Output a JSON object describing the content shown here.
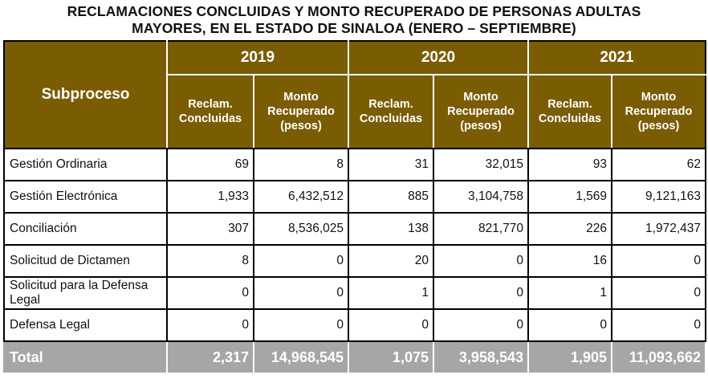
{
  "title": {
    "line1": "RECLAMACIONES CONCLUIDAS Y MONTO RECUPERADO DE PERSONAS ADULTAS",
    "line2": "MAYORES, EN EL ESTADO DE SINALOA (ENERO – SEPTIEMBRE)"
  },
  "header": {
    "subproceso": "Subproceso",
    "years": [
      "2019",
      "2020",
      "2021"
    ],
    "col_reclam": "Reclam. Concluidas",
    "col_monto": "Monto Recuperado (pesos)"
  },
  "rows": [
    {
      "label": "Gestión Ordinaria",
      "values": [
        "69",
        "8",
        "31",
        "32,015",
        "93",
        "62"
      ]
    },
    {
      "label": "Gestión Electrónica",
      "values": [
        "1,933",
        "6,432,512",
        "885",
        "3,104,758",
        "1,569",
        "9,121,163"
      ]
    },
    {
      "label": "Conciliación",
      "values": [
        "307",
        "8,536,025",
        "138",
        "821,770",
        "226",
        "1,972,437"
      ]
    },
    {
      "label": "Solicitud de Dictamen",
      "values": [
        "8",
        "0",
        "20",
        "0",
        "16",
        "0"
      ]
    },
    {
      "label": "Solicitud para la Defensa Legal",
      "values": [
        "0",
        "0",
        "1",
        "0",
        "1",
        "0"
      ]
    },
    {
      "label": "Defensa Legal",
      "values": [
        "0",
        "0",
        "0",
        "0",
        "0",
        "0"
      ]
    }
  ],
  "total": {
    "label": "Total",
    "values": [
      "2,317",
      "14,968,545",
      "1,075",
      "3,958,543",
      "1,905",
      "11,093,662"
    ]
  },
  "colors": {
    "header_bg": "#7a5c03",
    "total_bg": "#a6a6a6"
  }
}
